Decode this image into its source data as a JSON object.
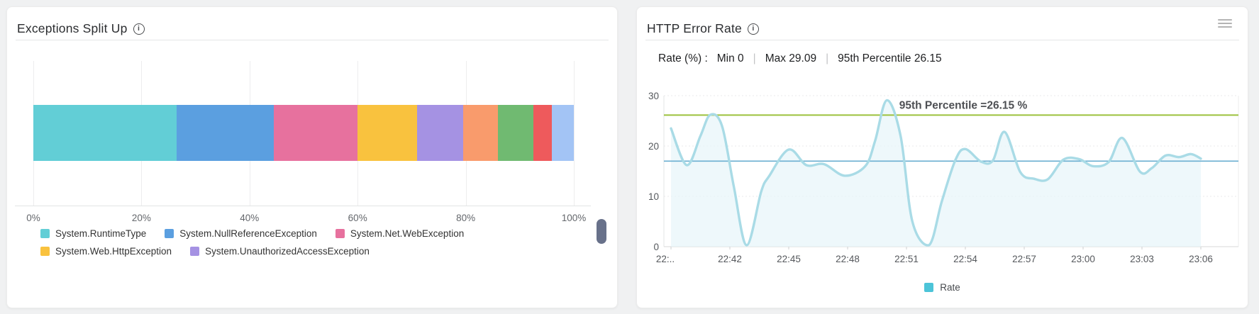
{
  "page": {
    "background": "#f0f1f2"
  },
  "chart_data": [
    {
      "type": "bar",
      "subtype": "horizontal-stacked-percent",
      "title": "Exceptions Split Up",
      "xlabel": "",
      "ylabel": "",
      "xlim": [
        0,
        100
      ],
      "x_tick_labels": [
        "0%",
        "20%",
        "40%",
        "60%",
        "80%",
        "100%"
      ],
      "grid": "vertical",
      "legend_position": "bottom-left",
      "segments": [
        {
          "name": "System.RuntimeType",
          "value": 26.5,
          "color": "#62ced6"
        },
        {
          "name": "System.NullReferenceException",
          "value": 18.0,
          "color": "#5b9fe0"
        },
        {
          "name": "System.Net.WebException",
          "value": 15.5,
          "color": "#e7719e"
        },
        {
          "name": "System.Web.HttpException",
          "value": 11.0,
          "color": "#f9c23e"
        },
        {
          "name": "System.UnauthorizedAccessException",
          "value": 8.5,
          "color": "#a592e3"
        },
        {
          "name": "",
          "value": 6.5,
          "color": "#f99b6c"
        },
        {
          "name": "",
          "value": 6.5,
          "color": "#70ba71"
        },
        {
          "name": "",
          "value": 3.5,
          "color": "#ee5a5c"
        },
        {
          "name": "",
          "value": 4.0,
          "color": "#a3c4f5"
        }
      ]
    },
    {
      "type": "area",
      "title": "HTTP Error Rate",
      "ylim": [
        0,
        30
      ],
      "y_ticks": [
        0,
        10,
        20,
        30
      ],
      "x_tick_labels": [
        "22:..",
        "22:42",
        "22:45",
        "22:48",
        "22:51",
        "22:54",
        "22:57",
        "23:00",
        "23:03",
        "23:06"
      ],
      "x_tick_minutes": [
        0,
        3,
        6,
        9,
        12,
        15,
        18,
        21,
        24,
        27
      ],
      "x_unit": "minutes after first visible tick (22:39, clipped to 22:..)",
      "grid": "horizontal-dotted",
      "legend_position": "bottom-center",
      "stats": {
        "min": 0,
        "max": 29.09,
        "p95": 26.15
      },
      "average_line": {
        "value": 17,
        "color": "#6aaed0"
      },
      "percentile_line": {
        "value": 26.15,
        "label": "95th Percentile =26.15 %",
        "color": "#9cc13c"
      },
      "series": [
        {
          "name": "Rate",
          "line_color": "#a9dbe6",
          "fill_color": "#e8f5f9",
          "legend_color": "#4cc4d8",
          "points": [
            [
              0,
              23.5
            ],
            [
              0.8,
              16.2
            ],
            [
              1.5,
              22.0
            ],
            [
              2.0,
              26.2
            ],
            [
              2.6,
              24.0
            ],
            [
              3.2,
              12.0
            ],
            [
              3.85,
              0.3
            ],
            [
              4.6,
              11.0
            ],
            [
              5.0,
              14.0
            ],
            [
              6.0,
              19.3
            ],
            [
              6.9,
              16.2
            ],
            [
              7.8,
              16.4
            ],
            [
              8.85,
              14.1
            ],
            [
              9.9,
              16.0
            ],
            [
              10.4,
              21.0
            ],
            [
              11.0,
              29.09
            ],
            [
              11.7,
              22.0
            ],
            [
              12.3,
              5.0
            ],
            [
              13.15,
              0.3
            ],
            [
              13.8,
              9.0
            ],
            [
              14.5,
              17.3
            ],
            [
              15.0,
              19.4
            ],
            [
              15.8,
              16.9
            ],
            [
              16.4,
              17.1
            ],
            [
              17.0,
              22.8
            ],
            [
              17.8,
              14.8
            ],
            [
              18.5,
              13.5
            ],
            [
              19.2,
              13.4
            ],
            [
              20.0,
              17.3
            ],
            [
              20.8,
              17.4
            ],
            [
              21.5,
              16.0
            ],
            [
              22.3,
              16.8
            ],
            [
              23.0,
              21.6
            ],
            [
              23.9,
              14.9
            ],
            [
              24.5,
              15.6
            ],
            [
              25.2,
              18.1
            ],
            [
              25.9,
              17.8
            ],
            [
              26.5,
              18.4
            ],
            [
              27.0,
              17.5
            ]
          ]
        }
      ],
      "legend": [
        {
          "label": "Rate",
          "color": "#4cc4d8"
        }
      ]
    }
  ],
  "left_panel": {
    "info_icon": "i"
  },
  "right_panel": {
    "info_icon": "i",
    "stats_row": {
      "prefix": "Rate (%) :",
      "min": "Min 0",
      "sep1": "|",
      "max": "Max 29.09",
      "sep2": "|",
      "p95": "95th Percentile 26.15"
    }
  }
}
